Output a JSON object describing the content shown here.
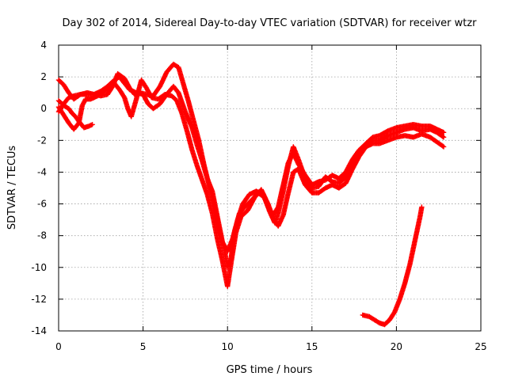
{
  "chart_data": {
    "type": "scatter",
    "title": "Day 302 of 2014, Sidereal Day-to-day VTEC variation (SDTVAR) for receiver wtzr",
    "xlabel": "GPS time / hours",
    "ylabel": "SDTVAR / TECUs",
    "xlim": [
      0,
      25
    ],
    "ylim": [
      -14,
      4
    ],
    "xticks": [
      0,
      5,
      10,
      15,
      20,
      25
    ],
    "yticks": [
      -14,
      -12,
      -10,
      -8,
      -6,
      -4,
      -2,
      0,
      2,
      4
    ],
    "grid": true,
    "marker": "+",
    "color": "#ff0000",
    "series": [
      {
        "name": "trace-a",
        "points": [
          [
            0,
            1.8
          ],
          [
            0.3,
            1.5
          ],
          [
            0.6,
            1.0
          ],
          [
            0.9,
            0.6
          ],
          [
            1.3,
            0.9
          ],
          [
            1.7,
            1.0
          ],
          [
            2.1,
            0.9
          ],
          [
            2.5,
            0.8
          ],
          [
            2.9,
            0.9
          ],
          [
            3.2,
            1.4
          ],
          [
            3.5,
            2.2
          ],
          [
            3.9,
            1.9
          ],
          [
            4.2,
            1.3
          ],
          [
            4.5,
            0.9
          ],
          [
            4.8,
            1.0
          ],
          [
            5.2,
            0.9
          ],
          [
            5.6,
            0.8
          ],
          [
            6.0,
            1.4
          ],
          [
            6.4,
            2.3
          ],
          [
            6.8,
            2.8
          ],
          [
            7.1,
            2.6
          ],
          [
            7.4,
            1.5
          ],
          [
            7.7,
            0.4
          ],
          [
            8.0,
            -0.8
          ],
          [
            8.3,
            -2.0
          ],
          [
            8.6,
            -3.5
          ],
          [
            8.9,
            -4.8
          ],
          [
            9.2,
            -6.0
          ],
          [
            9.5,
            -7.6
          ],
          [
            9.8,
            -8.8
          ],
          [
            10.0,
            -10.0
          ],
          [
            10.2,
            -9.5
          ],
          [
            10.4,
            -7.8
          ],
          [
            10.7,
            -6.6
          ],
          [
            11.0,
            -6.2
          ],
          [
            11.4,
            -5.8
          ],
          [
            11.8,
            -5.3
          ],
          [
            12.2,
            -5.6
          ],
          [
            12.5,
            -6.5
          ],
          [
            12.8,
            -7.2
          ],
          [
            13.0,
            -6.6
          ],
          [
            13.3,
            -5.2
          ],
          [
            13.6,
            -3.6
          ],
          [
            13.9,
            -2.4
          ],
          [
            14.2,
            -3.2
          ],
          [
            14.6,
            -4.4
          ],
          [
            15.0,
            -5.0
          ],
          [
            15.4,
            -4.9
          ],
          [
            15.8,
            -4.3
          ],
          [
            16.2,
            -4.6
          ],
          [
            16.6,
            -4.7
          ],
          [
            17.0,
            -4.3
          ],
          [
            17.4,
            -3.5
          ],
          [
            17.8,
            -2.8
          ],
          [
            18.2,
            -2.3
          ],
          [
            18.6,
            -2.0
          ],
          [
            19.0,
            -2.0
          ],
          [
            19.5,
            -1.7
          ],
          [
            20.0,
            -1.5
          ],
          [
            20.5,
            -1.3
          ],
          [
            21.0,
            -1.2
          ],
          [
            21.5,
            -1.4
          ],
          [
            22.0,
            -1.3
          ],
          [
            22.4,
            -1.5
          ],
          [
            22.8,
            -1.8
          ]
        ]
      },
      {
        "name": "trace-b",
        "points": [
          [
            0,
            0.1
          ],
          [
            0.3,
            -0.4
          ],
          [
            0.6,
            -0.9
          ],
          [
            0.9,
            -1.3
          ],
          [
            1.2,
            -0.9
          ],
          [
            1.4,
            0.2
          ],
          [
            1.6,
            0.6
          ],
          [
            1.9,
            0.6
          ],
          [
            2.3,
            0.8
          ],
          [
            2.7,
            1.1
          ],
          [
            3.0,
            1.3
          ],
          [
            3.3,
            1.6
          ],
          [
            3.6,
            1.2
          ],
          [
            3.9,
            0.7
          ],
          [
            4.1,
            0.0
          ],
          [
            4.3,
            -0.5
          ],
          [
            4.6,
            0.6
          ],
          [
            4.9,
            1.8
          ],
          [
            5.2,
            1.3
          ],
          [
            5.5,
            0.7
          ],
          [
            5.9,
            0.6
          ],
          [
            6.3,
            0.9
          ],
          [
            6.7,
            0.8
          ],
          [
            7.0,
            0.5
          ],
          [
            7.3,
            -0.3
          ],
          [
            7.6,
            -1.4
          ],
          [
            7.9,
            -2.6
          ],
          [
            8.2,
            -3.6
          ],
          [
            8.5,
            -4.5
          ],
          [
            8.8,
            -5.4
          ],
          [
            9.1,
            -6.6
          ],
          [
            9.4,
            -8.2
          ],
          [
            9.7,
            -9.6
          ],
          [
            10.0,
            -11.2
          ],
          [
            10.2,
            -9.8
          ],
          [
            10.5,
            -7.8
          ],
          [
            10.8,
            -6.8
          ],
          [
            11.2,
            -6.4
          ],
          [
            11.6,
            -5.6
          ],
          [
            12.0,
            -5.1
          ],
          [
            12.4,
            -6.0
          ],
          [
            12.7,
            -6.9
          ],
          [
            13.0,
            -7.4
          ],
          [
            13.3,
            -6.7
          ],
          [
            13.6,
            -5.3
          ],
          [
            13.9,
            -4.0
          ],
          [
            14.2,
            -3.8
          ],
          [
            14.6,
            -4.8
          ],
          [
            15.0,
            -5.3
          ],
          [
            15.4,
            -5.3
          ],
          [
            15.8,
            -5.0
          ],
          [
            16.2,
            -4.8
          ],
          [
            16.6,
            -5.0
          ],
          [
            17.0,
            -4.7
          ],
          [
            17.4,
            -3.8
          ],
          [
            17.8,
            -3.0
          ],
          [
            18.2,
            -2.4
          ],
          [
            18.6,
            -2.2
          ],
          [
            19.0,
            -2.2
          ],
          [
            19.5,
            -2.0
          ],
          [
            20.0,
            -1.8
          ],
          [
            20.5,
            -1.7
          ],
          [
            21.0,
            -1.8
          ],
          [
            21.5,
            -1.6
          ],
          [
            22.0,
            -1.8
          ],
          [
            22.4,
            -2.1
          ],
          [
            22.8,
            -2.4
          ]
        ]
      },
      {
        "name": "trace-c",
        "points": [
          [
            0,
            0.5
          ],
          [
            0.3,
            0.2
          ],
          [
            0.6,
            0.0
          ],
          [
            0.8,
            -0.3
          ],
          [
            1.0,
            -0.5
          ],
          [
            1.2,
            -0.8
          ],
          [
            1.5,
            -1.2
          ],
          [
            1.8,
            -1.1
          ],
          [
            2.0,
            -1.0
          ]
        ]
      },
      {
        "name": "trace-d",
        "points": [
          [
            0,
            -0.2
          ],
          [
            0.3,
            0.3
          ],
          [
            0.6,
            0.7
          ],
          [
            0.9,
            0.8
          ],
          [
            1.3,
            0.9
          ],
          [
            1.7,
            0.9
          ],
          [
            2.1,
            0.9
          ],
          [
            2.5,
            1.1
          ],
          [
            2.9,
            1.4
          ],
          [
            3.3,
            1.8
          ],
          [
            3.6,
            2.0
          ],
          [
            3.9,
            1.6
          ],
          [
            4.2,
            1.2
          ],
          [
            4.6,
            1.0
          ],
          [
            5.0,
            0.9
          ],
          [
            5.3,
            0.3
          ],
          [
            5.6,
            0.0
          ],
          [
            6.0,
            0.3
          ],
          [
            6.4,
            0.9
          ],
          [
            6.8,
            1.4
          ],
          [
            7.1,
            1.0
          ],
          [
            7.5,
            -0.2
          ],
          [
            7.9,
            -1.2
          ],
          [
            8.2,
            -2.3
          ],
          [
            8.5,
            -3.3
          ],
          [
            8.8,
            -4.4
          ],
          [
            9.1,
            -5.2
          ],
          [
            9.4,
            -6.8
          ],
          [
            9.7,
            -8.4
          ],
          [
            10.0,
            -9.0
          ],
          [
            10.3,
            -8.2
          ],
          [
            10.6,
            -7.0
          ],
          [
            10.9,
            -6.0
          ],
          [
            11.3,
            -5.4
          ],
          [
            11.7,
            -5.2
          ],
          [
            12.1,
            -5.4
          ],
          [
            12.4,
            -6.2
          ],
          [
            12.7,
            -6.7
          ],
          [
            13.0,
            -6.2
          ],
          [
            13.3,
            -4.8
          ],
          [
            13.6,
            -3.4
          ],
          [
            13.9,
            -2.8
          ],
          [
            14.2,
            -3.5
          ],
          [
            14.6,
            -4.2
          ],
          [
            15.0,
            -4.8
          ],
          [
            15.4,
            -4.6
          ],
          [
            15.8,
            -4.5
          ],
          [
            16.2,
            -4.2
          ],
          [
            16.6,
            -4.4
          ],
          [
            17.0,
            -4.0
          ],
          [
            17.4,
            -3.2
          ],
          [
            17.8,
            -2.6
          ],
          [
            18.2,
            -2.2
          ],
          [
            18.6,
            -1.8
          ],
          [
            19.0,
            -1.7
          ],
          [
            19.5,
            -1.4
          ],
          [
            20.0,
            -1.2
          ],
          [
            20.5,
            -1.1
          ],
          [
            21.0,
            -1.0
          ],
          [
            21.5,
            -1.1
          ],
          [
            22.0,
            -1.1
          ],
          [
            22.4,
            -1.3
          ],
          [
            22.8,
            -1.5
          ]
        ]
      },
      {
        "name": "trace-e",
        "points": [
          [
            18.0,
            -13.0
          ],
          [
            18.4,
            -13.1
          ],
          [
            18.7,
            -13.3
          ],
          [
            19.0,
            -13.5
          ],
          [
            19.3,
            -13.6
          ],
          [
            19.6,
            -13.3
          ],
          [
            19.9,
            -12.8
          ],
          [
            20.2,
            -12.0
          ],
          [
            20.5,
            -11.0
          ],
          [
            20.8,
            -9.8
          ],
          [
            21.0,
            -8.8
          ],
          [
            21.2,
            -7.8
          ],
          [
            21.4,
            -6.8
          ],
          [
            21.5,
            -6.2
          ]
        ]
      }
    ]
  }
}
